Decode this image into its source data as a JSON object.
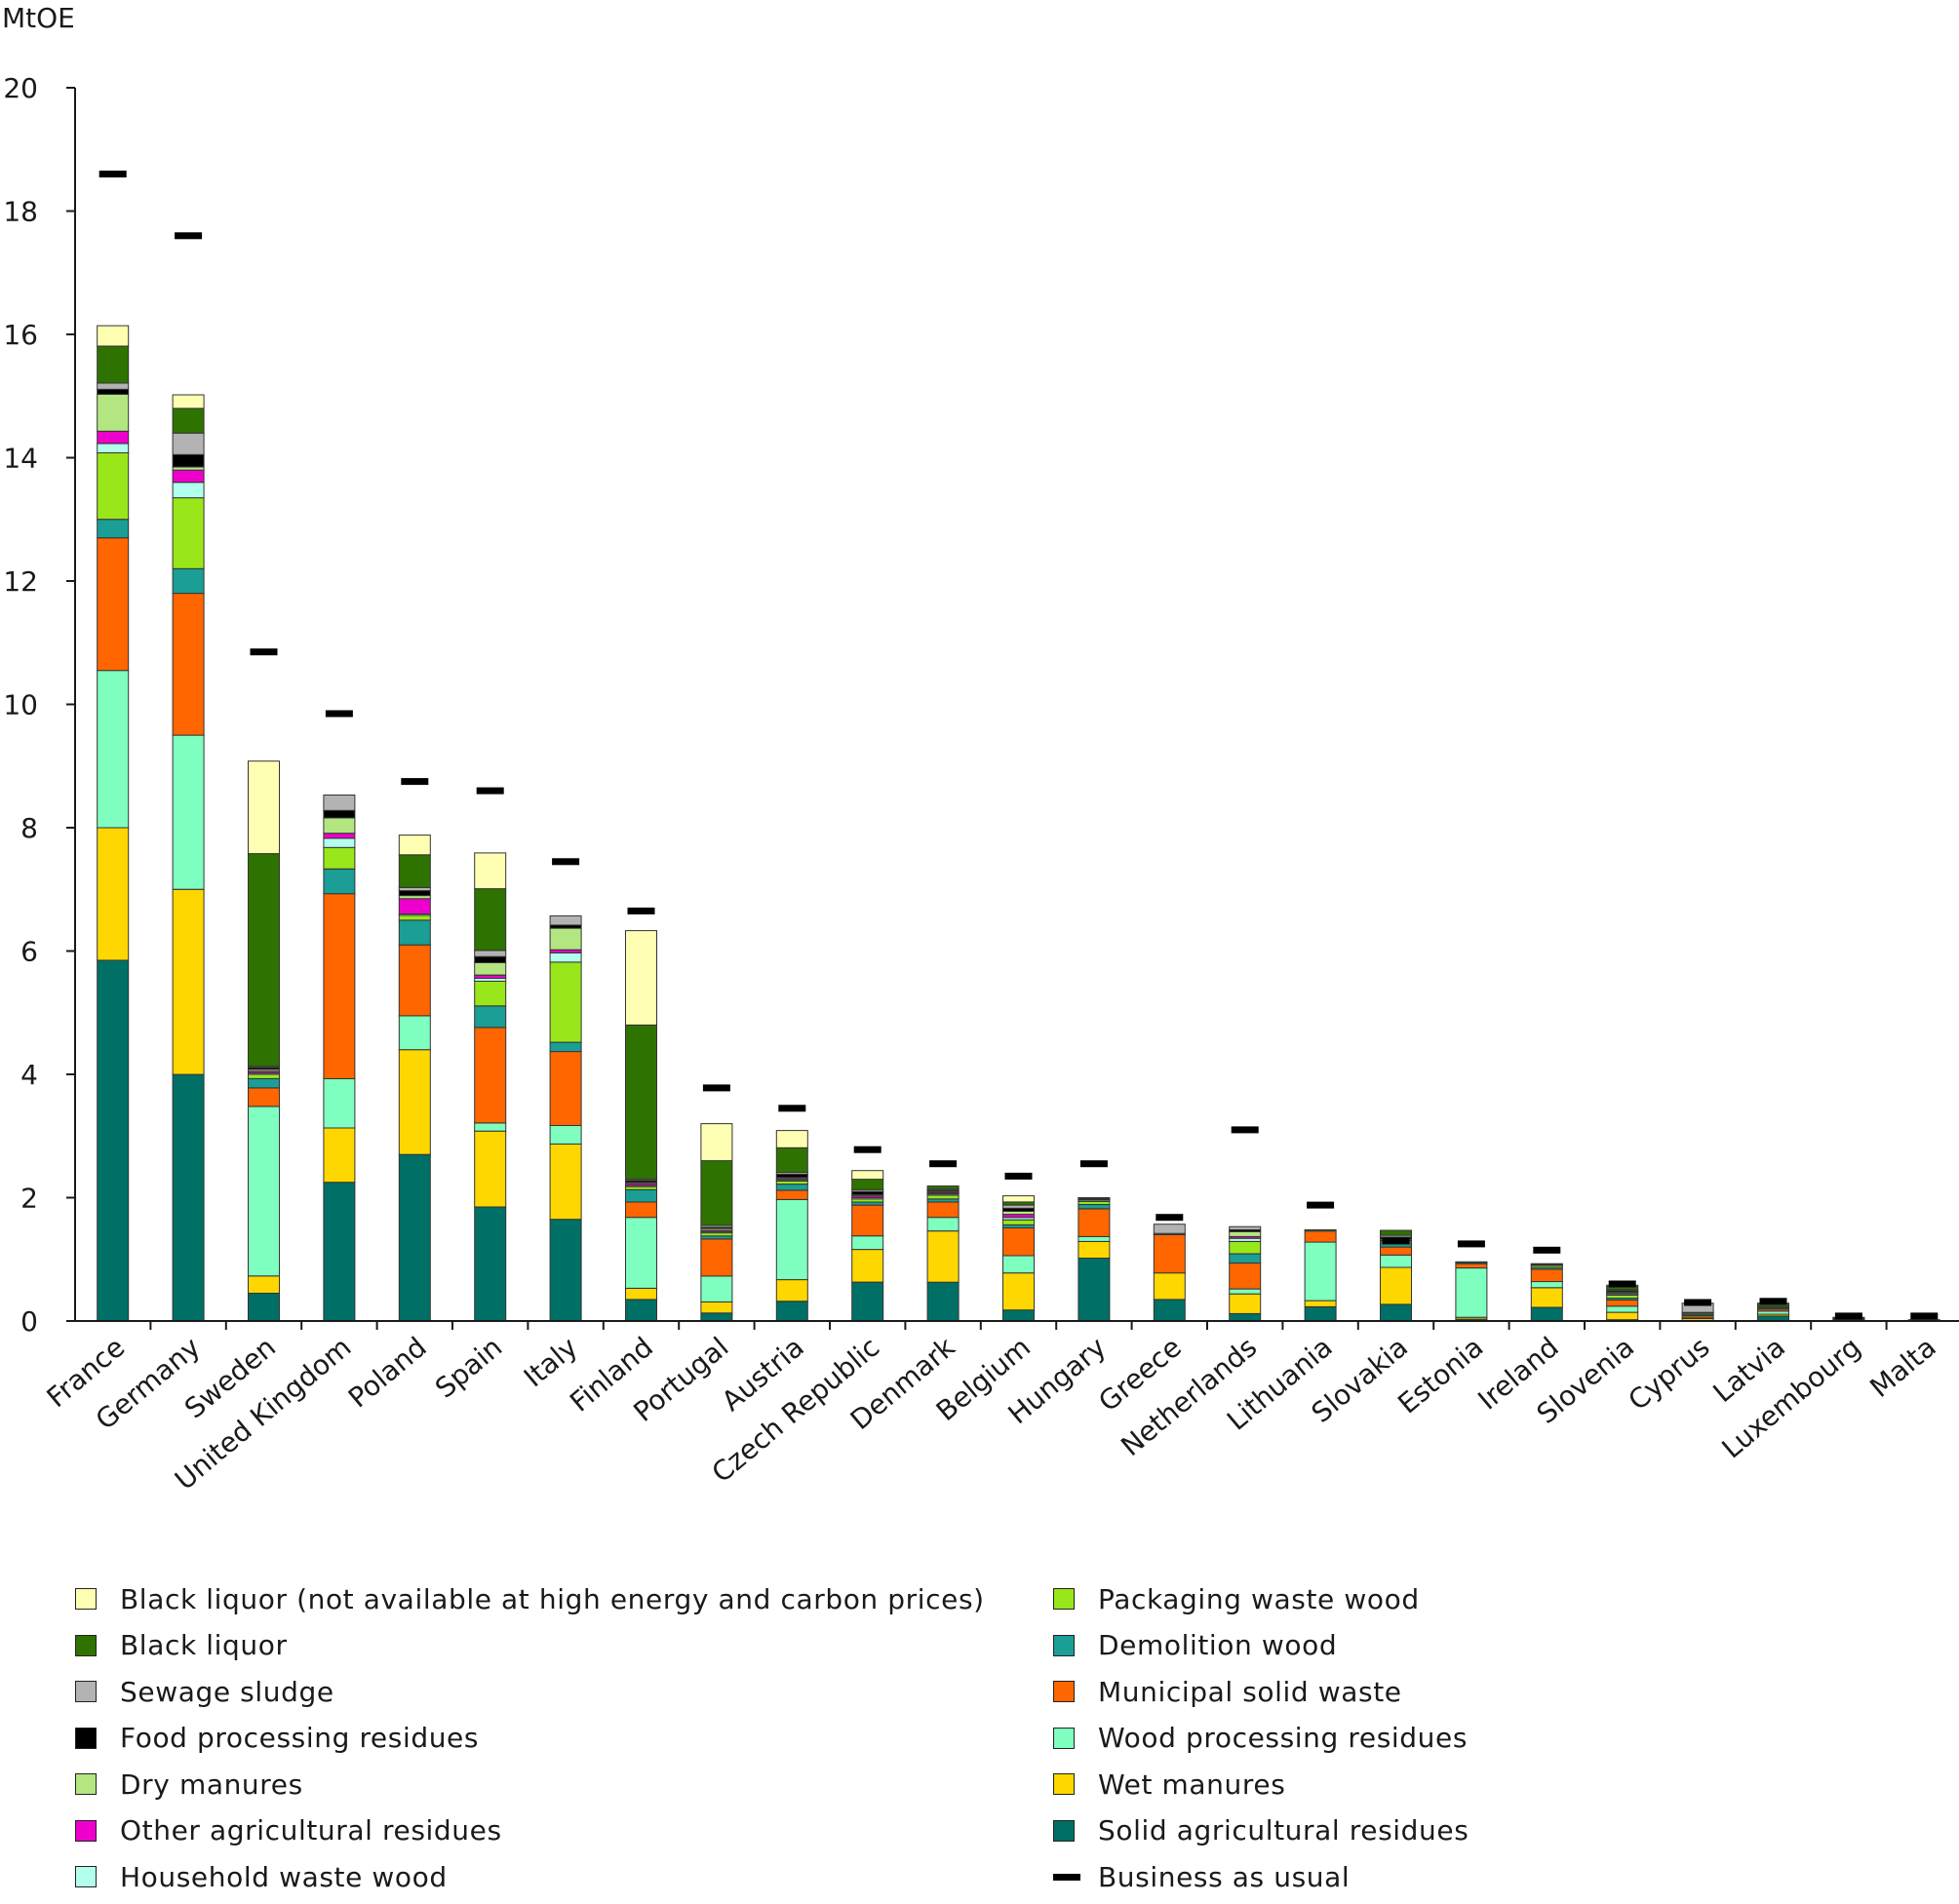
{
  "chart_data": {
    "type": "bar",
    "stacked": true,
    "title": "",
    "ylabel": "MtOE",
    "xlabel": "",
    "ylim": [
      0,
      20
    ],
    "yticks": [
      0,
      2,
      4,
      6,
      8,
      10,
      12,
      14,
      16,
      18,
      20
    ],
    "grid": false,
    "legend_position": "bottom",
    "categories": [
      "France",
      "Germany",
      "Sweden",
      "United Kingdom",
      "Poland",
      "Spain",
      "Italy",
      "Finland",
      "Portugal",
      "Austria",
      "Czech Republic",
      "Denmark",
      "Belgium",
      "Hungary",
      "Greece",
      "Netherlands",
      "Lithuania",
      "Slovakia",
      "Estonia",
      "Ireland",
      "Slovenia",
      "Cyprus",
      "Latvia",
      "Luxembourg",
      "Malta"
    ],
    "series": [
      {
        "name": "Solid agricultural residues",
        "color": "#007066",
        "values": [
          5.85,
          4.0,
          0.45,
          2.25,
          2.7,
          1.85,
          1.65,
          0.35,
          0.13,
          0.32,
          0.63,
          0.63,
          0.18,
          1.02,
          0.35,
          0.12,
          0.23,
          0.27,
          0.03,
          0.22,
          0.02,
          0.01,
          0.08,
          0.01,
          0.0
        ]
      },
      {
        "name": "Wet manures",
        "color": "#ffd700",
        "values": [
          2.15,
          3.0,
          0.28,
          0.88,
          1.7,
          1.23,
          1.22,
          0.18,
          0.18,
          0.35,
          0.53,
          0.83,
          0.6,
          0.27,
          0.43,
          0.32,
          0.1,
          0.6,
          0.03,
          0.32,
          0.12,
          0.03,
          0.03,
          0.01,
          0.01
        ]
      },
      {
        "name": "Wood processing residues",
        "color": "#7fffbf",
        "values": [
          2.55,
          2.5,
          2.75,
          0.8,
          0.55,
          0.13,
          0.3,
          1.15,
          0.42,
          1.3,
          0.22,
          0.22,
          0.28,
          0.08,
          0.0,
          0.08,
          0.95,
          0.2,
          0.8,
          0.1,
          0.1,
          0.02,
          0.05,
          0.01,
          0.0
        ]
      },
      {
        "name": "Municipal solid waste",
        "color": "#ff6600",
        "values": [
          2.15,
          2.3,
          0.3,
          3.0,
          1.15,
          1.55,
          1.2,
          0.25,
          0.6,
          0.15,
          0.5,
          0.25,
          0.45,
          0.45,
          0.62,
          0.42,
          0.18,
          0.13,
          0.07,
          0.2,
          0.1,
          0.03,
          0.03,
          0.01,
          0.01
        ]
      },
      {
        "name": "Demolition wood",
        "color": "#1a9e96",
        "values": [
          0.3,
          0.4,
          0.15,
          0.4,
          0.4,
          0.35,
          0.15,
          0.2,
          0.05,
          0.1,
          0.05,
          0.05,
          0.05,
          0.07,
          0.02,
          0.15,
          0.02,
          0.05,
          0.02,
          0.03,
          0.03,
          0.02,
          0.02,
          0.01,
          0.0
        ]
      },
      {
        "name": "Packaging waste wood",
        "color": "#99e61a",
        "values": [
          1.08,
          1.15,
          0.07,
          0.35,
          0.08,
          0.4,
          1.3,
          0.05,
          0.05,
          0.05,
          0.05,
          0.06,
          0.08,
          0.05,
          0.0,
          0.2,
          0.0,
          0.03,
          0.01,
          0.03,
          0.05,
          0.02,
          0.01,
          0.01,
          0.0
        ]
      },
      {
        "name": "Household waste wood",
        "color": "#b3ffee",
        "values": [
          0.15,
          0.25,
          0.02,
          0.15,
          0.02,
          0.05,
          0.15,
          0.02,
          0.02,
          0.02,
          0.02,
          0.02,
          0.04,
          0.02,
          0.0,
          0.05,
          0.0,
          0.02,
          0.0,
          0.01,
          0.02,
          0.01,
          0.0,
          0.0,
          0.0
        ]
      },
      {
        "name": "Other agricultural residues",
        "color": "#ee00cc",
        "values": [
          0.2,
          0.2,
          0.03,
          0.08,
          0.25,
          0.05,
          0.05,
          0.03,
          0.02,
          0.02,
          0.03,
          0.02,
          0.05,
          0.01,
          0.0,
          0.03,
          0.0,
          0.01,
          0.0,
          0.0,
          0.01,
          0.0,
          0.0,
          0.0,
          0.0
        ]
      },
      {
        "name": "Dry manures",
        "color": "#b3e680",
        "values": [
          0.6,
          0.05,
          0.03,
          0.25,
          0.05,
          0.2,
          0.35,
          0.02,
          0.03,
          0.02,
          0.02,
          0.02,
          0.05,
          0.01,
          0.0,
          0.08,
          0.0,
          0.02,
          0.0,
          0.01,
          0.02,
          0.0,
          0.0,
          0.0,
          0.0
        ]
      },
      {
        "name": "Food processing residues",
        "color": "#000000",
        "values": [
          0.08,
          0.2,
          0.03,
          0.12,
          0.08,
          0.1,
          0.05,
          0.03,
          0.02,
          0.05,
          0.05,
          0.02,
          0.05,
          0.01,
          0.0,
          0.03,
          0.0,
          0.03,
          0.0,
          0.0,
          0.02,
          0.0,
          0.0,
          0.0,
          0.0
        ]
      },
      {
        "name": "Sewage sludge",
        "color": "#b3b3b3",
        "values": [
          0.1,
          0.35,
          0.02,
          0.25,
          0.05,
          0.1,
          0.15,
          0.02,
          0.03,
          0.03,
          0.03,
          0.02,
          0.05,
          0.01,
          0.15,
          0.05,
          0.0,
          0.03,
          0.0,
          0.01,
          0.02,
          0.15,
          0.02,
          0.0,
          0.0
        ]
      },
      {
        "name": "Black liquor",
        "color": "#2e7300",
        "values": [
          0.6,
          0.4,
          3.45,
          0.0,
          0.53,
          1.0,
          0.0,
          2.5,
          1.05,
          0.4,
          0.17,
          0.05,
          0.05,
          0.0,
          0.0,
          0.0,
          0.0,
          0.08,
          0.0,
          0.0,
          0.05,
          0.0,
          0.05,
          0.0,
          0.0
        ]
      },
      {
        "name": "Black liquor (not available at high energy and carbon prices)",
        "color": "#ffffb3",
        "values": [
          0.33,
          0.22,
          1.5,
          0.0,
          0.32,
          0.58,
          0.0,
          1.53,
          0.6,
          0.28,
          0.14,
          0.0,
          0.1,
          0.0,
          0.0,
          0.0,
          0.0,
          0.0,
          0.0,
          0.0,
          0.02,
          0.0,
          0.0,
          0.0,
          0.0
        ]
      }
    ],
    "business_as_usual": {
      "name": "Business as usual",
      "color": "#000000",
      "values": [
        18.6,
        17.6,
        10.85,
        9.85,
        8.75,
        8.6,
        7.45,
        6.65,
        3.78,
        3.45,
        2.78,
        2.55,
        2.35,
        2.55,
        1.68,
        3.1,
        1.88,
        1.3,
        1.25,
        1.15,
        0.6,
        0.3,
        0.32,
        0.08,
        0.08
      ]
    }
  },
  "legend": {
    "left": [
      {
        "label": "Black liquor (not available at high energy and carbon prices)",
        "color": "#ffffb3"
      },
      {
        "label": "Black liquor",
        "color": "#2e7300"
      },
      {
        "label": "Sewage sludge",
        "color": "#b3b3b3"
      },
      {
        "label": "Food processing residues",
        "color": "#000000"
      },
      {
        "label": "Dry manures",
        "color": "#b3e680"
      },
      {
        "label": "Other agricultural residues",
        "color": "#ee00cc"
      },
      {
        "label": "Household waste wood",
        "color": "#b3ffee"
      }
    ],
    "right": [
      {
        "label": "Packaging waste wood",
        "color": "#99e61a"
      },
      {
        "label": "Demolition wood",
        "color": "#1a9e96"
      },
      {
        "label": "Municipal solid waste",
        "color": "#ff6600"
      },
      {
        "label": "Wood processing residues",
        "color": "#7fffbf"
      },
      {
        "label": "Wet manures",
        "color": "#ffd700"
      },
      {
        "label": "Solid agricultural residues",
        "color": "#007066"
      },
      {
        "label": "Business as usual",
        "color": "#000000",
        "marker": "line"
      }
    ]
  }
}
